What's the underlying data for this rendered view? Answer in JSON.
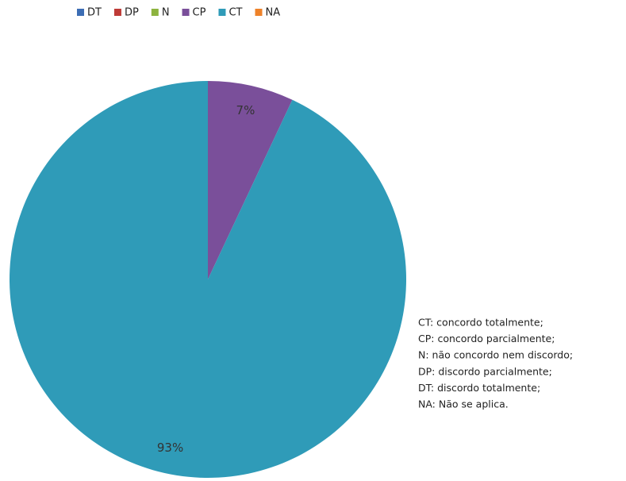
{
  "chart_data": {
    "type": "pie",
    "categories": [
      "DT",
      "DP",
      "N",
      "CP",
      "CT",
      "NA"
    ],
    "values": [
      0,
      0,
      0,
      7,
      93,
      0
    ],
    "value_labels": [
      null,
      null,
      null,
      "7%",
      "93%",
      null
    ],
    "colors": [
      "#3c6db4",
      "#be3b37",
      "#8db33f",
      "#7a4f9a",
      "#2f9bb8",
      "#ee8229"
    ],
    "legend": "top",
    "annotation": [
      "CT: concordo totalmente;",
      "CP: concordo parcialmente;",
      "N: não concordo nem discordo;",
      "DP: discordo parcialmente;",
      "DT: discordo totalmente;",
      "NA: Não se aplica."
    ]
  }
}
